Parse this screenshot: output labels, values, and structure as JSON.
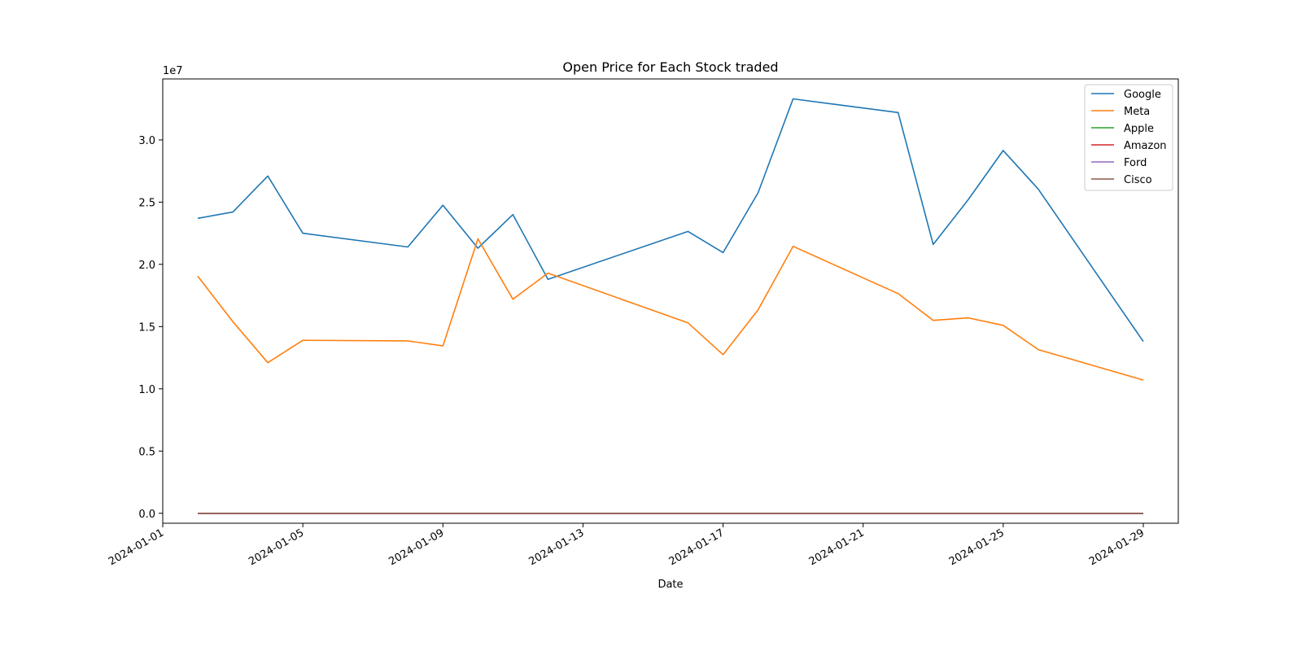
{
  "chart_data": {
    "type": "line",
    "title": "Open Price for Each Stock traded",
    "xlabel": "Date",
    "ylabel": "",
    "y_offset_label": "1e7",
    "x_ticks": [
      "2024-01-01",
      "2024-01-05",
      "2024-01-09",
      "2024-01-13",
      "2024-01-17",
      "2024-01-21",
      "2024-01-25",
      "2024-01-29"
    ],
    "y_ticks": [
      "0.0",
      "0.5",
      "1.0",
      "1.5",
      "2.0",
      "2.5",
      "3.0"
    ],
    "y_tick_values": [
      0,
      5000000,
      10000000,
      15000000,
      20000000,
      25000000,
      30000000
    ],
    "xlim": [
      "2024-01-01",
      "2024-01-30"
    ],
    "ylim": [
      -800000,
      34900000
    ],
    "grid": false,
    "legend_position": "top-right",
    "x": [
      "2024-01-02",
      "2024-01-03",
      "2024-01-04",
      "2024-01-05",
      "2024-01-08",
      "2024-01-09",
      "2024-01-10",
      "2024-01-11",
      "2024-01-12",
      "2024-01-16",
      "2024-01-17",
      "2024-01-18",
      "2024-01-19",
      "2024-01-22",
      "2024-01-23",
      "2024-01-24",
      "2024-01-25",
      "2024-01-26",
      "2024-01-29"
    ],
    "series": [
      {
        "name": "Google",
        "color": "#1f77b4",
        "values": [
          23700000,
          24200000,
          27100000,
          22500000,
          21400000,
          24750000,
          21300000,
          24000000,
          18800000,
          22650000,
          20950000,
          25750000,
          33300000,
          32200000,
          21600000,
          25200000,
          29150000,
          26050000,
          13800000
        ]
      },
      {
        "name": "Meta",
        "color": "#ff7f0e",
        "values": [
          19050000,
          15400000,
          12100000,
          13900000,
          13850000,
          13450000,
          22050000,
          17200000,
          19300000,
          15300000,
          12750000,
          16350000,
          21450000,
          17650000,
          15500000,
          15700000,
          15100000,
          13150000,
          10700000
        ]
      },
      {
        "name": "Apple",
        "color": "#2ca02c",
        "values": [
          0,
          0,
          0,
          0,
          0,
          0,
          0,
          0,
          0,
          0,
          0,
          0,
          0,
          0,
          0,
          0,
          0,
          0,
          0
        ]
      },
      {
        "name": "Amazon",
        "color": "#d62728",
        "values": [
          0,
          0,
          0,
          0,
          0,
          0,
          0,
          0,
          0,
          0,
          0,
          0,
          0,
          0,
          0,
          0,
          0,
          0,
          0
        ]
      },
      {
        "name": "Ford",
        "color": "#9467bd",
        "values": [
          0,
          0,
          0,
          0,
          0,
          0,
          0,
          0,
          0,
          0,
          0,
          0,
          0,
          0,
          0,
          0,
          0,
          0,
          0
        ]
      },
      {
        "name": "Cisco",
        "color": "#8c564b",
        "values": [
          0,
          0,
          0,
          0,
          0,
          0,
          0,
          0,
          0,
          0,
          0,
          0,
          0,
          0,
          0,
          0,
          0,
          0,
          0
        ]
      }
    ]
  }
}
